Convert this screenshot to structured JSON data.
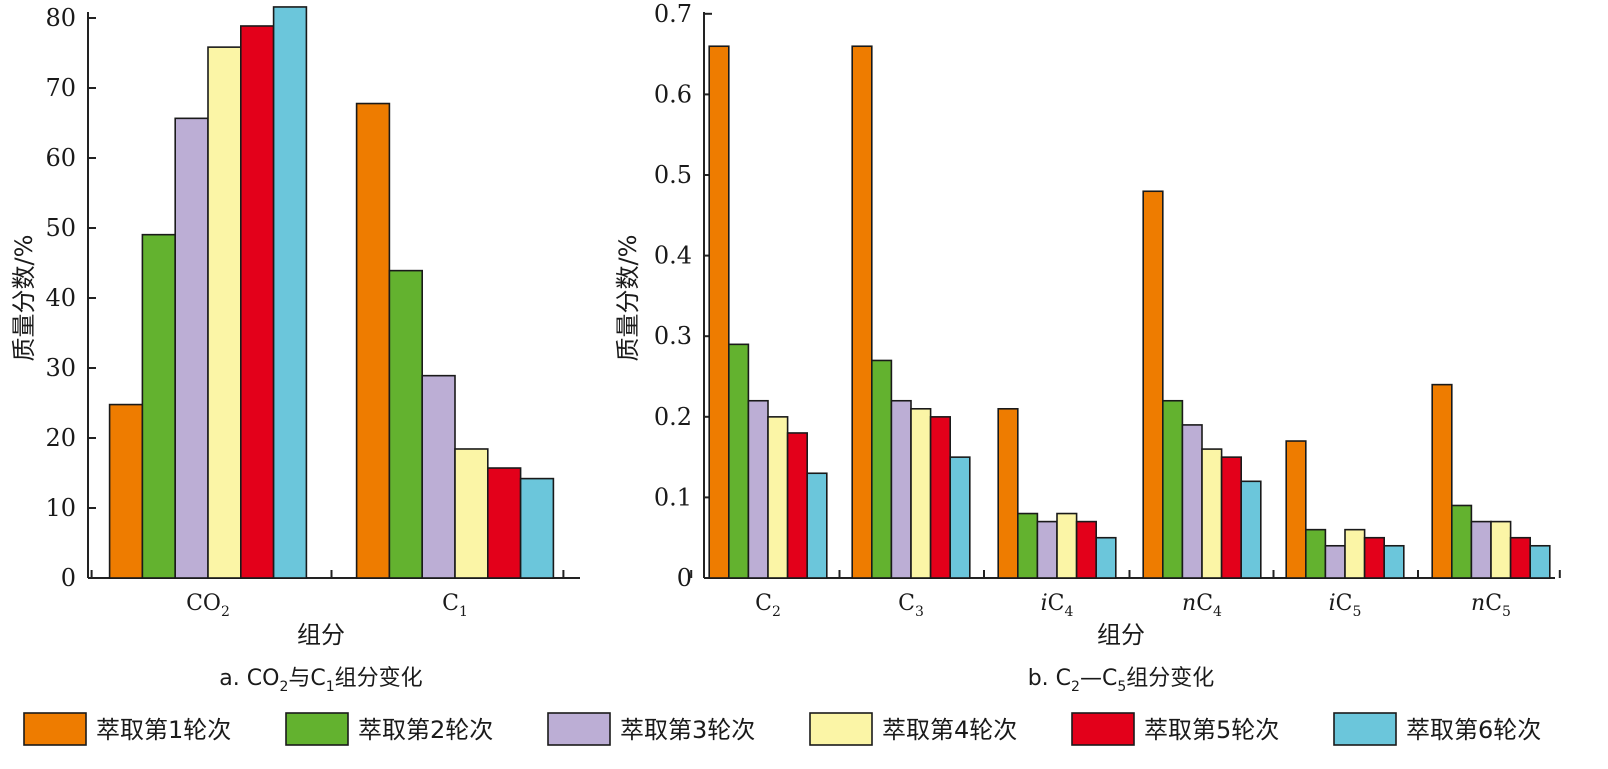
{
  "legend": {
    "items": [
      {
        "label": "萃取第1轮次",
        "color": "#EE7C00"
      },
      {
        "label": "萃取第2轮次",
        "color": "#63B22F"
      },
      {
        "label": "萃取第3轮次",
        "color": "#BCAED5"
      },
      {
        "label": "萃取第4轮次",
        "color": "#FBF5A6"
      },
      {
        "label": "萃取第5轮次",
        "color": "#E3001A"
      },
      {
        "label": "萃取第6轮次",
        "color": "#6BC6DB"
      }
    ]
  },
  "chart_data": [
    {
      "type": "bar",
      "caption": {
        "prefix": "a. CO",
        "sub1": "2",
        "mid": "与C",
        "sub2": "1",
        "suffix": "组分变化"
      },
      "xlabel": "组分",
      "ylabel": "质量分数/%",
      "ylim": [
        0,
        80
      ],
      "yticks": [
        "0",
        "10",
        "20",
        "30",
        "40",
        "50",
        "60",
        "70",
        "80"
      ],
      "categories": [
        {
          "base": "CO",
          "sub": "2",
          "prefix": ""
        },
        {
          "base": "C",
          "sub": "1",
          "prefix": ""
        }
      ],
      "series": [
        {
          "name": "萃取第1轮次",
          "values": [
            24.6,
            67.3
          ]
        },
        {
          "name": "萃取第2轮次",
          "values": [
            48.7,
            43.6
          ]
        },
        {
          "name": "萃取第3轮次",
          "values": [
            65.2,
            28.7
          ]
        },
        {
          "name": "萃取第4轮次",
          "values": [
            75.3,
            18.3
          ]
        },
        {
          "name": "萃取第5轮次",
          "values": [
            78.3,
            15.6
          ]
        },
        {
          "name": "萃取第6轮次",
          "values": [
            81.0,
            14.1
          ]
        }
      ],
      "grid": false
    },
    {
      "type": "bar",
      "caption": {
        "prefix": "b. C",
        "sub1": "2",
        "mid": "—C",
        "sub2": "5",
        "suffix": "组分变化"
      },
      "xlabel": "组分",
      "ylabel": "质量分数/%",
      "ylim": [
        0,
        0.7
      ],
      "yticks": [
        "0",
        "0.1",
        "0.2",
        "0.3",
        "0.4",
        "0.5",
        "0.6",
        "0.7"
      ],
      "categories": [
        {
          "base": "C",
          "sub": "2",
          "prefix": ""
        },
        {
          "base": "C",
          "sub": "3",
          "prefix": ""
        },
        {
          "base": "C",
          "sub": "4",
          "prefix": "i"
        },
        {
          "base": "C",
          "sub": "4",
          "prefix": "n"
        },
        {
          "base": "C",
          "sub": "5",
          "prefix": "i"
        },
        {
          "base": "C",
          "sub": "5",
          "prefix": "n"
        }
      ],
      "series": [
        {
          "name": "萃取第1轮次",
          "values": [
            0.66,
            0.66,
            0.21,
            0.48,
            0.17,
            0.24
          ]
        },
        {
          "name": "萃取第2轮次",
          "values": [
            0.29,
            0.27,
            0.08,
            0.22,
            0.06,
            0.09
          ]
        },
        {
          "name": "萃取第3轮次",
          "values": [
            0.22,
            0.22,
            0.07,
            0.19,
            0.04,
            0.07
          ]
        },
        {
          "name": "萃取第4轮次",
          "values": [
            0.2,
            0.21,
            0.08,
            0.16,
            0.06,
            0.07
          ]
        },
        {
          "name": "萃取第5轮次",
          "values": [
            0.18,
            0.2,
            0.07,
            0.15,
            0.05,
            0.05
          ]
        },
        {
          "name": "萃取第6轮次",
          "values": [
            0.13,
            0.15,
            0.05,
            0.12,
            0.04,
            0.04
          ]
        }
      ],
      "grid": false
    }
  ]
}
